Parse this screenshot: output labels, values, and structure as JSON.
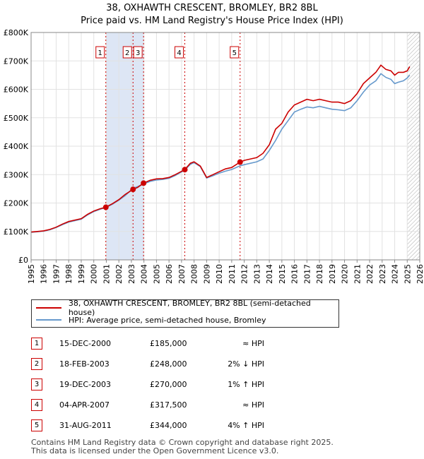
{
  "header": {
    "title": "38, OXHAWTH CRESCENT, BROMLEY, BR2 8BL",
    "subtitle": "Price paid vs. HM Land Registry's House Price Index (HPI)"
  },
  "legend": {
    "items": [
      {
        "label": "38, OXHAWTH CRESCENT, BROMLEY, BR2 8BL (semi-detached house)",
        "color": "#cc0000"
      },
      {
        "label": "HPI: Average price, semi-detached house, Bromley",
        "color": "#6699cc"
      }
    ]
  },
  "sales": [
    {
      "num": "1",
      "date": "15-DEC-2000",
      "price": "£185,000",
      "hpi": "≈ HPI"
    },
    {
      "num": "2",
      "date": "18-FEB-2003",
      "price": "£248,000",
      "hpi": "2% ↓ HPI"
    },
    {
      "num": "3",
      "date": "19-DEC-2003",
      "price": "£270,000",
      "hpi": "1% ↑ HPI"
    },
    {
      "num": "4",
      "date": "04-APR-2007",
      "price": "£317,500",
      "hpi": "≈ HPI"
    },
    {
      "num": "5",
      "date": "31-AUG-2011",
      "price": "£344,000",
      "hpi": "4% ↑ HPI"
    }
  ],
  "footer": {
    "line1": "Contains HM Land Registry data © Crown copyright and database right 2025.",
    "line2": "This data is licensed under the Open Government Licence v3.0."
  },
  "chart_data": {
    "type": "line",
    "xlim": [
      1995,
      2026
    ],
    "ylim": [
      0,
      800000
    ],
    "x_ticks": [
      "1995",
      "1996",
      "1997",
      "1998",
      "1999",
      "2000",
      "2001",
      "2002",
      "2003",
      "2004",
      "2005",
      "2006",
      "2007",
      "2008",
      "2009",
      "2010",
      "2011",
      "2012",
      "2013",
      "2014",
      "2015",
      "2016",
      "2017",
      "2018",
      "2019",
      "2020",
      "2021",
      "2022",
      "2023",
      "2024",
      "2025",
      "2026"
    ],
    "y_ticks": [
      {
        "value": 0,
        "label": "£0"
      },
      {
        "value": 100000,
        "label": "£100K"
      },
      {
        "value": 200000,
        "label": "£200K"
      },
      {
        "value": 300000,
        "label": "£300K"
      },
      {
        "value": 400000,
        "label": "£400K"
      },
      {
        "value": 500000,
        "label": "£500K"
      },
      {
        "value": 600000,
        "label": "£600K"
      },
      {
        "value": 700000,
        "label": "£700K"
      },
      {
        "value": 800000,
        "label": "£800K"
      }
    ],
    "shaded_bands": [
      [
        2000.96,
        2003.97
      ],
      [
        2007.26,
        2007.26
      ],
      [
        2011.67,
        2011.67
      ]
    ],
    "future_hatch_from": 2025.0,
    "series": [
      {
        "name": "38, OXHAWTH CRESCENT, BROMLEY, BR2 8BL (semi-detached house)",
        "color": "#cc0000",
        "x": [
          1995,
          1995.5,
          1996,
          1996.5,
          1997,
          1997.5,
          1998,
          1998.5,
          1999,
          1999.5,
          2000,
          2000.5,
          2000.96,
          2001.5,
          2002,
          2002.5,
          2003.13,
          2003.5,
          2003.97,
          2004.5,
          2005,
          2005.5,
          2006,
          2006.5,
          2007.26,
          2007.7,
          2008,
          2008.5,
          2009,
          2009.5,
          2010,
          2010.5,
          2011,
          2011.67,
          2012,
          2012.5,
          2013,
          2013.5,
          2014,
          2014.5,
          2015,
          2015.5,
          2016,
          2016.5,
          2017,
          2017.5,
          2018,
          2018.5,
          2019,
          2019.5,
          2020,
          2020.5,
          2021,
          2021.5,
          2022,
          2022.5,
          2022.9,
          2023.3,
          2023.7,
          2024,
          2024.3,
          2024.7,
          2025,
          2025.2
        ],
        "y": [
          98000,
          100000,
          102000,
          107000,
          115000,
          126000,
          135000,
          140000,
          145000,
          160000,
          172000,
          180000,
          185000,
          198000,
          212000,
          230000,
          248000,
          255000,
          270000,
          280000,
          285000,
          286000,
          290000,
          300000,
          317500,
          340000,
          345000,
          330000,
          290000,
          300000,
          310000,
          320000,
          325000,
          344000,
          350000,
          355000,
          360000,
          375000,
          405000,
          460000,
          480000,
          520000,
          545000,
          555000,
          565000,
          560000,
          565000,
          560000,
          555000,
          555000,
          550000,
          560000,
          585000,
          620000,
          640000,
          660000,
          685000,
          670000,
          665000,
          650000,
          660000,
          660000,
          665000,
          680000
        ]
      },
      {
        "name": "HPI: Average price, semi-detached house, Bromley",
        "color": "#6699cc",
        "x": [
          1995,
          1995.5,
          1996,
          1996.5,
          1997,
          1997.5,
          1998,
          1998.5,
          1999,
          1999.5,
          2000,
          2000.5,
          2000.96,
          2001.5,
          2002,
          2002.5,
          2003.13,
          2003.5,
          2003.97,
          2004.5,
          2005,
          2005.5,
          2006,
          2006.5,
          2007.26,
          2007.7,
          2008,
          2008.5,
          2009,
          2009.5,
          2010,
          2010.5,
          2011,
          2011.67,
          2012,
          2012.5,
          2013,
          2013.5,
          2014,
          2014.5,
          2015,
          2015.5,
          2016,
          2016.5,
          2017,
          2017.5,
          2018,
          2018.5,
          2019,
          2019.5,
          2020,
          2020.5,
          2021,
          2021.5,
          2022,
          2022.5,
          2022.9,
          2023.3,
          2023.7,
          2024,
          2024.3,
          2024.7,
          2025,
          2025.2
        ],
        "y": [
          97000,
          99000,
          101000,
          106000,
          114000,
          124000,
          133000,
          138000,
          143000,
          158000,
          170000,
          178000,
          184000,
          196000,
          210000,
          226000,
          252000,
          258000,
          267000,
          276000,
          281000,
          283000,
          287000,
          297000,
          316000,
          336000,
          342000,
          328000,
          288000,
          296000,
          305000,
          312000,
          318000,
          331000,
          335000,
          340000,
          345000,
          355000,
          385000,
          420000,
          460000,
          490000,
          520000,
          530000,
          538000,
          535000,
          540000,
          535000,
          530000,
          528000,
          525000,
          535000,
          560000,
          590000,
          615000,
          630000,
          655000,
          642000,
          635000,
          620000,
          625000,
          630000,
          640000,
          650000
        ]
      }
    ],
    "sales_points": [
      {
        "label": "1",
        "x": 2000.96,
        "y": 185000
      },
      {
        "label": "2",
        "x": 2003.13,
        "y": 248000
      },
      {
        "label": "3",
        "x": 2003.97,
        "y": 270000
      },
      {
        "label": "4",
        "x": 2007.26,
        "y": 317500
      },
      {
        "label": "5",
        "x": 2011.67,
        "y": 344000
      }
    ]
  }
}
